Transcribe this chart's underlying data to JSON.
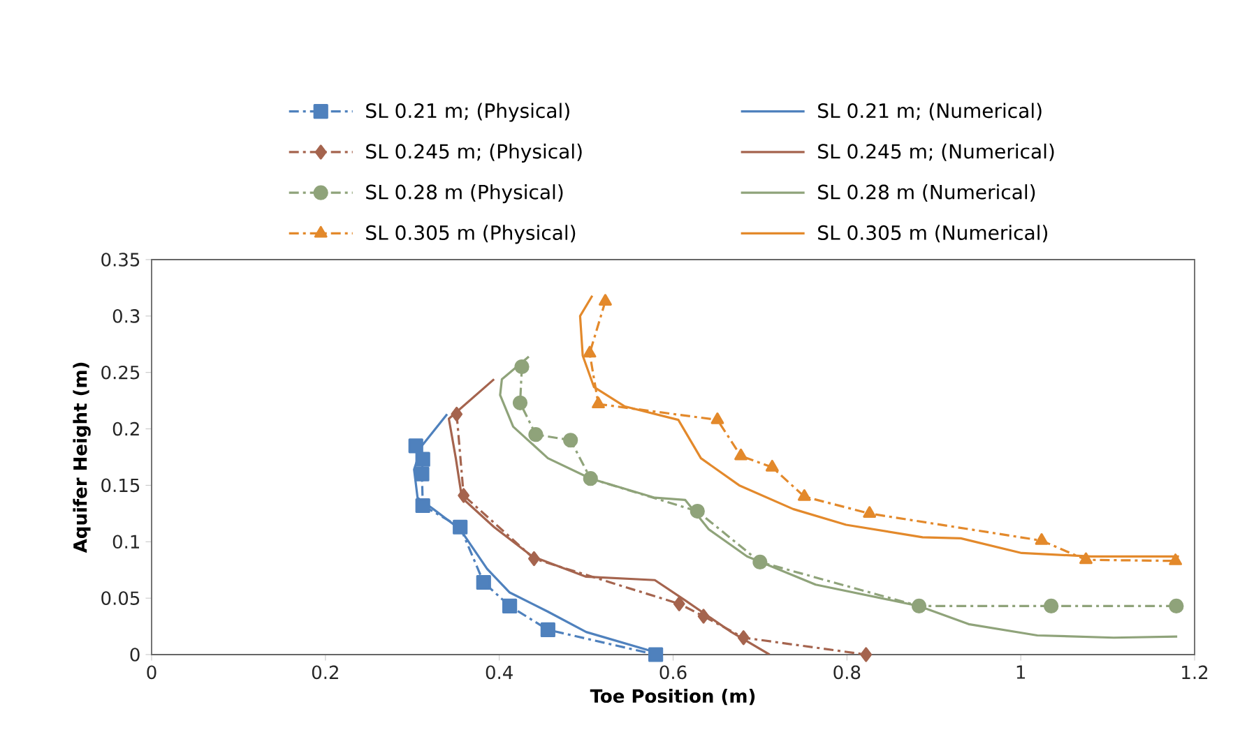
{
  "chart_data": {
    "type": "line",
    "xlabel": "Toe Position  (m)",
    "ylabel": "Aquifer Height (m)",
    "xlim": [
      0,
      1.2
    ],
    "ylim": [
      0,
      0.35
    ],
    "xticks": [
      0,
      0.2,
      0.4,
      0.6,
      0.8,
      1,
      1.2
    ],
    "yticks": [
      0,
      0.05,
      0.1,
      0.15,
      0.2,
      0.25,
      0.3,
      0.35
    ],
    "legend": "top",
    "grid": false,
    "series": [
      {
        "name": "SL 0.21 m; (Physical)",
        "color": "#4f81bd",
        "marker": "square",
        "line_style": "dashed",
        "x": [
          0.304,
          0.312,
          0.311,
          0.312,
          0.355,
          0.382,
          0.412,
          0.456,
          0.58
        ],
        "values": [
          0.185,
          0.173,
          0.16,
          0.132,
          0.113,
          0.064,
          0.043,
          0.022,
          0
        ]
      },
      {
        "name": "SL 0.21 m; (Numerical)",
        "color": "#4f81bd",
        "marker": "none",
        "line_style": "solid",
        "x": [
          0.34,
          0.311,
          0.302,
          0.306,
          0.324,
          0.355,
          0.386,
          0.412,
          0.456,
          0.5,
          0.58
        ],
        "values": [
          0.213,
          0.185,
          0.164,
          0.139,
          0.129,
          0.111,
          0.076,
          0.055,
          0.038,
          0.02,
          0.002
        ]
      },
      {
        "name": "SL 0.245 m; (Physical)",
        "color": "#a5644e",
        "marker": "diamond",
        "line_style": "dashed",
        "x": [
          0.351,
          0.359,
          0.44,
          0.607,
          0.635,
          0.681,
          0.822
        ],
        "values": [
          0.213,
          0.141,
          0.085,
          0.045,
          0.034,
          0.015,
          0
        ]
      },
      {
        "name": "SL 0.245 m; (Numerical)",
        "color": "#a5644e",
        "marker": "none",
        "line_style": "solid",
        "x": [
          0.394,
          0.342,
          0.35,
          0.357,
          0.394,
          0.438,
          0.5,
          0.579,
          0.614,
          0.667,
          0.711
        ],
        "values": [
          0.244,
          0.209,
          0.174,
          0.139,
          0.113,
          0.087,
          0.069,
          0.066,
          0.048,
          0.02,
          0
        ]
      },
      {
        "name": "SL 0.28 m (Physical)",
        "color": "#8fa37a",
        "marker": "circle",
        "line_style": "dashed",
        "x": [
          0.426,
          0.424,
          0.442,
          0.482,
          0.505,
          0.628,
          0.7,
          0.883,
          1.035,
          1.179
        ],
        "values": [
          0.255,
          0.223,
          0.195,
          0.19,
          0.156,
          0.127,
          0.082,
          0.043,
          0.043,
          0.043
        ]
      },
      {
        "name": "SL 0.28 m (Numerical)",
        "color": "#8fa37a",
        "marker": "none",
        "line_style": "solid",
        "x": [
          0.434,
          0.403,
          0.401,
          0.416,
          0.456,
          0.505,
          0.579,
          0.614,
          0.641,
          0.685,
          0.764,
          0.883,
          0.94,
          1.019,
          1.107,
          1.18
        ],
        "values": [
          0.264,
          0.244,
          0.23,
          0.202,
          0.174,
          0.156,
          0.139,
          0.137,
          0.111,
          0.087,
          0.062,
          0.043,
          0.027,
          0.017,
          0.015,
          0.016
        ]
      },
      {
        "name": "SL 0.305 m (Physical)",
        "color": "#e3892b",
        "marker": "triangle",
        "line_style": "dashed",
        "x": [
          0.522,
          0.504,
          0.514,
          0.651,
          0.678,
          0.714,
          0.751,
          0.826,
          1.024,
          1.075,
          1.178
        ],
        "values": [
          0.313,
          0.267,
          0.222,
          0.208,
          0.176,
          0.166,
          0.14,
          0.125,
          0.101,
          0.084,
          0.083
        ]
      },
      {
        "name": "SL 0.305 m (Numerical)",
        "color": "#e3892b",
        "marker": "none",
        "line_style": "solid",
        "x": [
          0.507,
          0.493,
          0.496,
          0.509,
          0.544,
          0.606,
          0.632,
          0.676,
          0.738,
          0.799,
          0.887,
          0.931,
          1.001,
          1.081,
          1.182
        ],
        "values": [
          0.318,
          0.3,
          0.265,
          0.237,
          0.22,
          0.208,
          0.174,
          0.15,
          0.129,
          0.115,
          0.104,
          0.103,
          0.09,
          0.087,
          0.087
        ]
      }
    ]
  }
}
